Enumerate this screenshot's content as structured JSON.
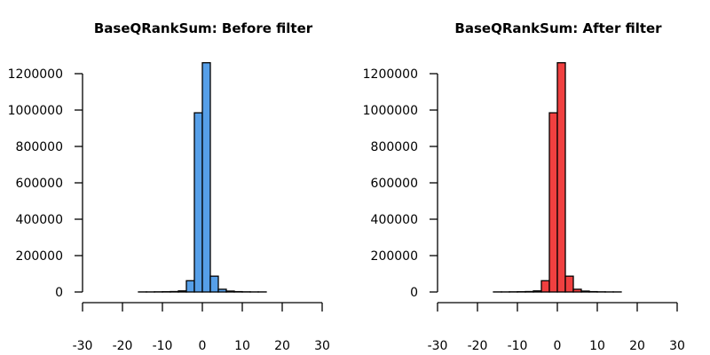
{
  "chart_data": [
    {
      "type": "bar",
      "title": "BaseQRankSum: Before filter",
      "xlabel": "",
      "ylabel": "",
      "color": "#569fe8",
      "xlim": [
        -30,
        30
      ],
      "ylim": [
        0,
        1200000
      ],
      "x_ticks": [
        "-30",
        "-20",
        "-10",
        "0",
        "10",
        "20",
        "30"
      ],
      "y_ticks": [
        "0",
        "200000",
        "400000",
        "600000",
        "800000",
        "1000000",
        "1200000"
      ],
      "bins": [
        {
          "x0": -30,
          "x1": -28,
          "value": 0
        },
        {
          "x0": -28,
          "x1": -26,
          "value": 0
        },
        {
          "x0": -26,
          "x1": -24,
          "value": 0
        },
        {
          "x0": -24,
          "x1": -22,
          "value": 0
        },
        {
          "x0": -22,
          "x1": -20,
          "value": 0
        },
        {
          "x0": -20,
          "x1": -18,
          "value": 0
        },
        {
          "x0": -18,
          "x1": -16,
          "value": 0
        },
        {
          "x0": -16,
          "x1": -14,
          "value": 500
        },
        {
          "x0": -14,
          "x1": -12,
          "value": 500
        },
        {
          "x0": -12,
          "x1": -10,
          "value": 1000
        },
        {
          "x0": -10,
          "x1": -8,
          "value": 1500
        },
        {
          "x0": -8,
          "x1": -6,
          "value": 2500
        },
        {
          "x0": -6,
          "x1": -4,
          "value": 6000
        },
        {
          "x0": -4,
          "x1": -2,
          "value": 62000
        },
        {
          "x0": -2,
          "x1": 0,
          "value": 985000
        },
        {
          "x0": 0,
          "x1": 2,
          "value": 1260000
        },
        {
          "x0": 2,
          "x1": 4,
          "value": 87000
        },
        {
          "x0": 4,
          "x1": 6,
          "value": 15000
        },
        {
          "x0": 6,
          "x1": 8,
          "value": 5000
        },
        {
          "x0": 8,
          "x1": 10,
          "value": 2000
        },
        {
          "x0": 10,
          "x1": 12,
          "value": 1000
        },
        {
          "x0": 12,
          "x1": 14,
          "value": 500
        },
        {
          "x0": 14,
          "x1": 16,
          "value": 500
        },
        {
          "x0": 16,
          "x1": 18,
          "value": 0
        },
        {
          "x0": 18,
          "x1": 20,
          "value": 0
        },
        {
          "x0": 20,
          "x1": 22,
          "value": 0
        },
        {
          "x0": 22,
          "x1": 24,
          "value": 0
        },
        {
          "x0": 24,
          "x1": 26,
          "value": 0
        },
        {
          "x0": 26,
          "x1": 28,
          "value": 0
        },
        {
          "x0": 28,
          "x1": 30,
          "value": 0
        }
      ]
    },
    {
      "type": "bar",
      "title": "BaseQRankSum: After filter",
      "xlabel": "",
      "ylabel": "",
      "color": "#f04040",
      "xlim": [
        -30,
        30
      ],
      "ylim": [
        0,
        1200000
      ],
      "x_ticks": [
        "-30",
        "-20",
        "-10",
        "0",
        "10",
        "20",
        "30"
      ],
      "y_ticks": [
        "0",
        "200000",
        "400000",
        "600000",
        "800000",
        "1000000",
        "1200000"
      ],
      "bins": [
        {
          "x0": -30,
          "x1": -28,
          "value": 0
        },
        {
          "x0": -28,
          "x1": -26,
          "value": 0
        },
        {
          "x0": -26,
          "x1": -24,
          "value": 0
        },
        {
          "x0": -24,
          "x1": -22,
          "value": 0
        },
        {
          "x0": -22,
          "x1": -20,
          "value": 0
        },
        {
          "x0": -20,
          "x1": -18,
          "value": 0
        },
        {
          "x0": -18,
          "x1": -16,
          "value": 0
        },
        {
          "x0": -16,
          "x1": -14,
          "value": 500
        },
        {
          "x0": -14,
          "x1": -12,
          "value": 500
        },
        {
          "x0": -12,
          "x1": -10,
          "value": 1000
        },
        {
          "x0": -10,
          "x1": -8,
          "value": 1500
        },
        {
          "x0": -8,
          "x1": -6,
          "value": 2500
        },
        {
          "x0": -6,
          "x1": -4,
          "value": 6000
        },
        {
          "x0": -4,
          "x1": -2,
          "value": 62000
        },
        {
          "x0": -2,
          "x1": 0,
          "value": 985000
        },
        {
          "x0": 0,
          "x1": 2,
          "value": 1260000
        },
        {
          "x0": 2,
          "x1": 4,
          "value": 87000
        },
        {
          "x0": 4,
          "x1": 6,
          "value": 15000
        },
        {
          "x0": 6,
          "x1": 8,
          "value": 5000
        },
        {
          "x0": 8,
          "x1": 10,
          "value": 2000
        },
        {
          "x0": 10,
          "x1": 12,
          "value": 1000
        },
        {
          "x0": 12,
          "x1": 14,
          "value": 500
        },
        {
          "x0": 14,
          "x1": 16,
          "value": 500
        },
        {
          "x0": 16,
          "x1": 18,
          "value": 0
        },
        {
          "x0": 18,
          "x1": 20,
          "value": 0
        },
        {
          "x0": 20,
          "x1": 22,
          "value": 0
        },
        {
          "x0": 22,
          "x1": 24,
          "value": 0
        },
        {
          "x0": 24,
          "x1": 26,
          "value": 0
        },
        {
          "x0": 26,
          "x1": 28,
          "value": 0
        },
        {
          "x0": 28,
          "x1": 30,
          "value": 0
        }
      ]
    }
  ]
}
